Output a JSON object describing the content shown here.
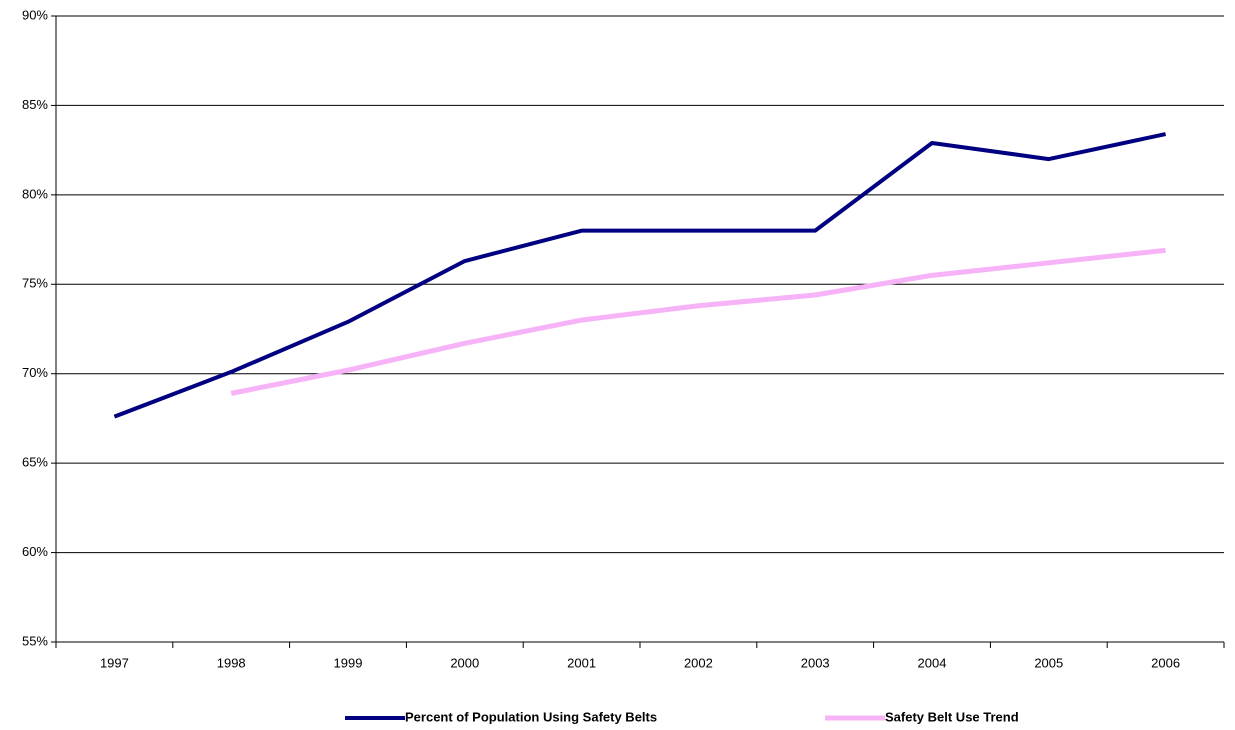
{
  "chart_data": {
    "type": "line",
    "categories": [
      "1997",
      "1998",
      "1999",
      "2000",
      "2001",
      "2002",
      "2003",
      "2004",
      "2005",
      "2006"
    ],
    "series": [
      {
        "name": "Percent of Population Using Safety Belts",
        "color": "#000080",
        "values": [
          67.6,
          70.1,
          72.9,
          76.3,
          78.0,
          78.0,
          78.0,
          82.9,
          82.0,
          83.4
        ]
      },
      {
        "name": "Safety Belt Use Trend",
        "color": "#f7b3f7",
        "values": [
          null,
          68.9,
          70.2,
          71.7,
          73.0,
          73.8,
          74.4,
          75.5,
          76.2,
          76.9
        ]
      }
    ],
    "ylim": [
      55,
      90
    ],
    "yticks": [
      {
        "value": 55,
        "label": "55%"
      },
      {
        "value": 60,
        "label": "60%"
      },
      {
        "value": 65,
        "label": "65%"
      },
      {
        "value": 70,
        "label": "70%"
      },
      {
        "value": 75,
        "label": "75%"
      },
      {
        "value": 80,
        "label": "80%"
      },
      {
        "value": 85,
        "label": "85%"
      },
      {
        "value": 90,
        "label": "90%"
      }
    ],
    "grid": true
  }
}
